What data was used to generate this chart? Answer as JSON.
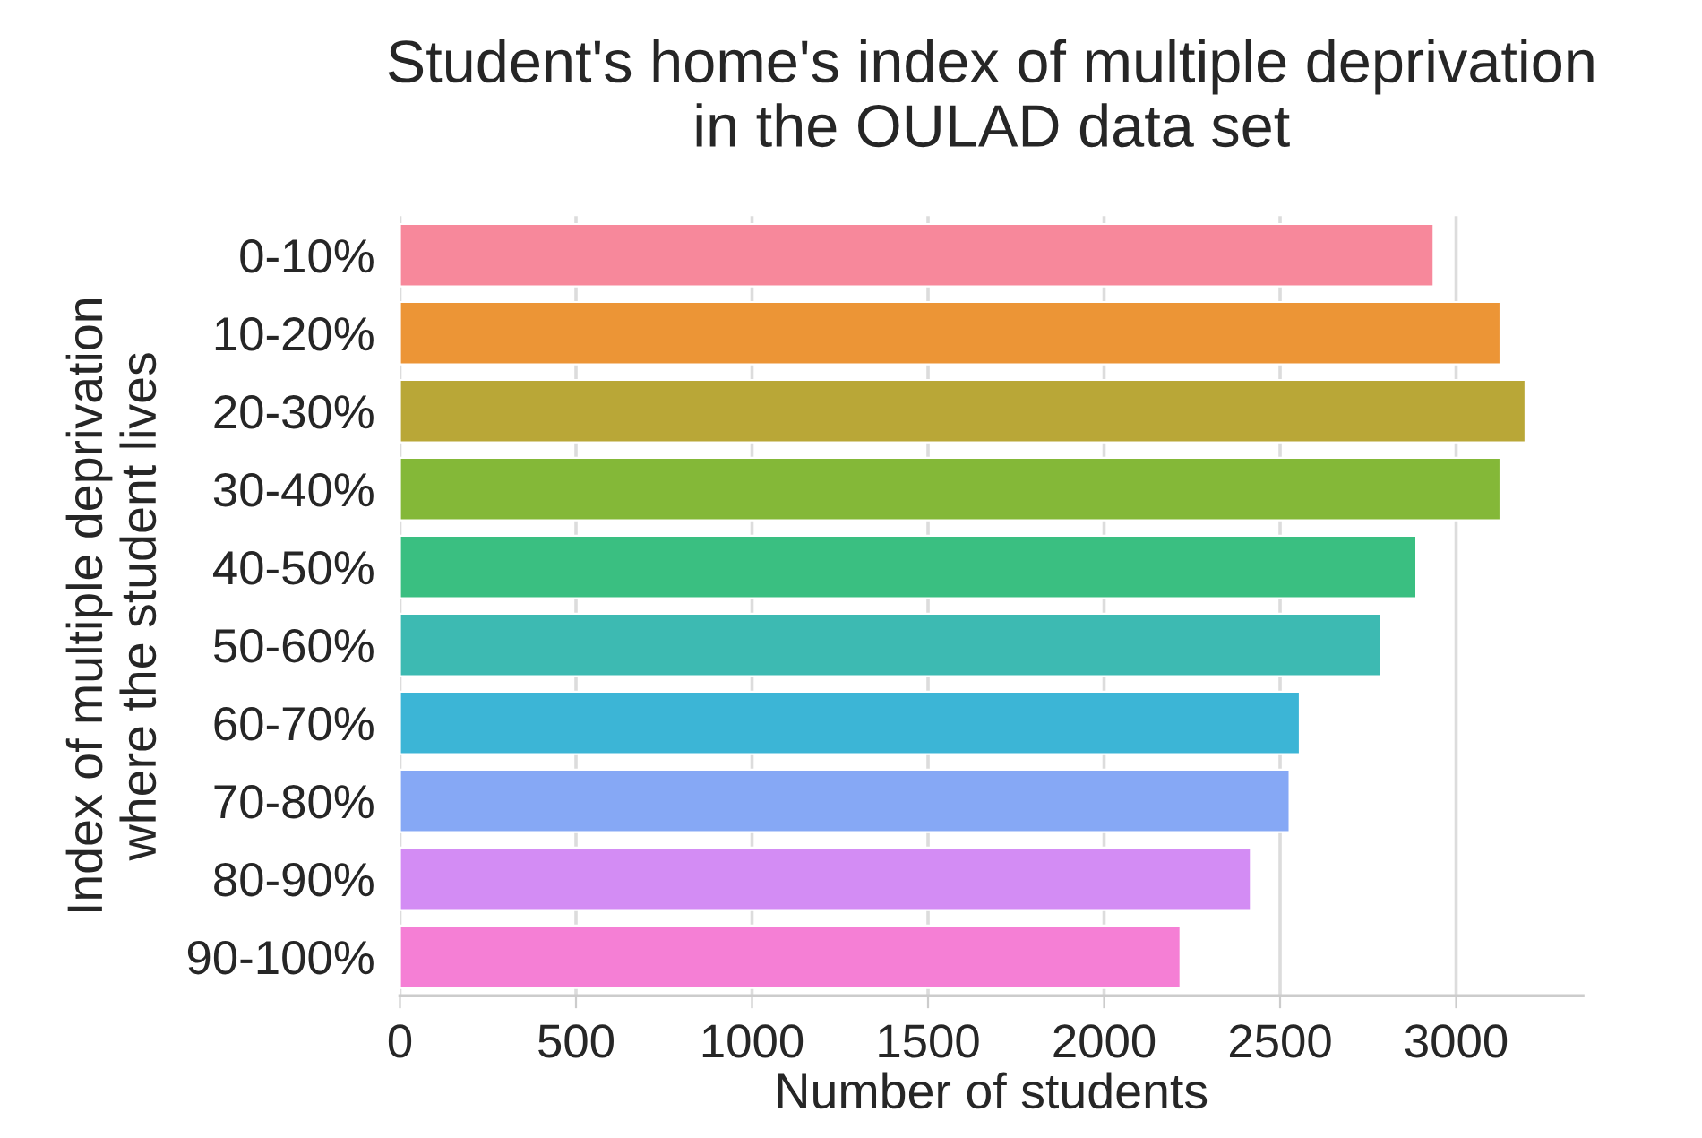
{
  "chart_data": {
    "type": "bar",
    "orientation": "horizontal",
    "title": "Student's home's index of multiple deprivation\nin the OULAD data set",
    "xlabel": "Number of students",
    "ylabel": "Index of multiple deprivation\nwhere the student lives",
    "categories": [
      "0-10%",
      "10-20%",
      "20-30%",
      "30-40%",
      "40-50%",
      "50-60%",
      "60-70%",
      "70-80%",
      "80-90%",
      "90-100%"
    ],
    "values": [
      2936,
      3126,
      3197,
      3126,
      2887,
      2786,
      2556,
      2527,
      2417,
      2217
    ],
    "colors": [
      "#f7889b",
      "#ec9536",
      "#b9a737",
      "#84b838",
      "#3abf81",
      "#3dbab2",
      "#3cb5d6",
      "#86a8f5",
      "#d38cf4",
      "#f57fd5"
    ],
    "xlim": [
      0,
      3360
    ],
    "xticks": [
      0,
      500,
      1000,
      1500,
      2000,
      2500,
      3000
    ],
    "grid": "x"
  }
}
